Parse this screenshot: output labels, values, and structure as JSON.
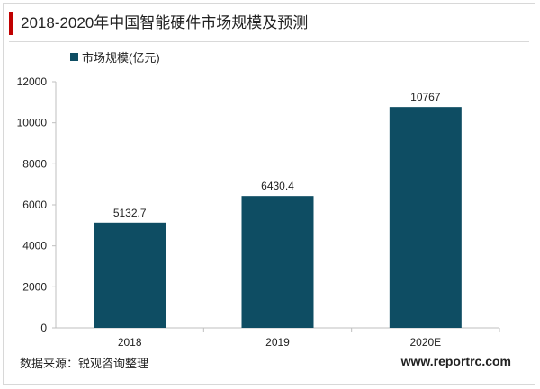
{
  "title": "2018-2020年中国智能硬件市场规模及预测",
  "source": "数据来源：锐观咨询整理",
  "website": "www.reportrc.com",
  "colors": {
    "accent": "#c00000",
    "bar": "#0e4d63"
  },
  "chart_data": {
    "type": "bar",
    "categories": [
      "2018",
      "2019",
      "2020E"
    ],
    "series": [
      {
        "name": "市场规模(亿元)",
        "values": [
          5132.7,
          6430.4,
          10767
        ]
      }
    ],
    "data_labels": [
      "5132.7",
      "6430.4",
      "10767"
    ],
    "ylim": [
      0,
      12000
    ],
    "yticks": [
      0,
      2000,
      4000,
      6000,
      8000,
      10000,
      12000
    ],
    "legend_position": "top-left",
    "grid": false
  }
}
